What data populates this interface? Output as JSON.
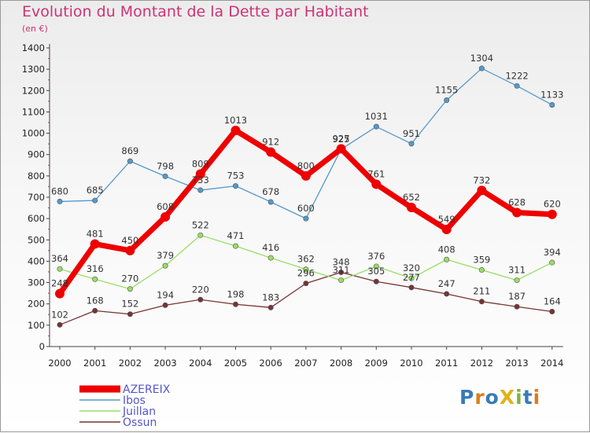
{
  "title": "Evolution du Montant de la Dette par Habitant",
  "subtitle": "(en €)",
  "logo": "ProXiti",
  "chart_data": {
    "type": "line",
    "title": "Evolution du Montant de la Dette par Habitant",
    "subtitle": "(en €)",
    "xlabel": "",
    "ylabel": "",
    "x": [
      "2000",
      "2001",
      "2002",
      "2003",
      "2004",
      "2005",
      "2006",
      "2007",
      "2008",
      "2009",
      "2010",
      "2011",
      "2012",
      "2013",
      "2014"
    ],
    "ylim": [
      0,
      1400
    ],
    "yticks": [
      0,
      100,
      200,
      300,
      400,
      500,
      600,
      700,
      800,
      900,
      1000,
      1100,
      1200,
      1300,
      1400
    ],
    "grid": false,
    "legend": "bottom-left",
    "series": [
      {
        "name": "AZEREIX",
        "color": "#ee0000",
        "values": [
          248,
          481,
          450,
          608,
          809,
          1013,
          912,
          800,
          927,
          761,
          652,
          549,
          732,
          628,
          620
        ]
      },
      {
        "name": "Ibos",
        "color": "#5599cc",
        "values": [
          680,
          685,
          869,
          798,
          733,
          753,
          678,
          600,
          925,
          1031,
          951,
          1155,
          1304,
          1222,
          1133
        ]
      },
      {
        "name": "Juillan",
        "color": "#99dd66",
        "values": [
          364,
          316,
          270,
          379,
          522,
          471,
          416,
          362,
          311,
          376,
          320,
          408,
          359,
          311,
          394
        ]
      },
      {
        "name": "Ossun",
        "color": "#773333",
        "values": [
          102,
          168,
          152,
          194,
          220,
          198,
          183,
          296,
          348,
          305,
          277,
          247,
          211,
          187,
          164
        ]
      }
    ]
  }
}
